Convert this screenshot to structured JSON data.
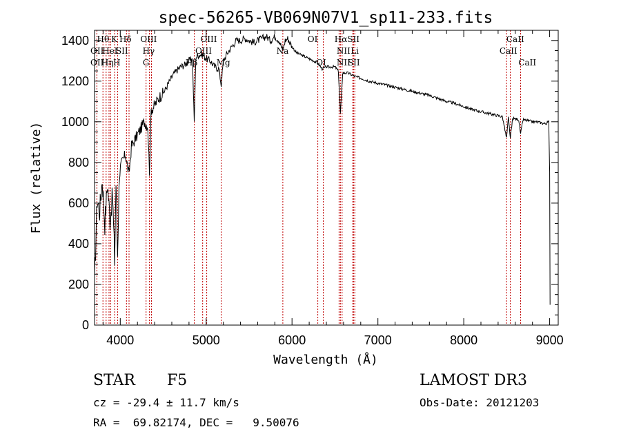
{
  "chart_data": {
    "type": "line",
    "title": "spec-56265-VB069N07V1_sp11-233.fits",
    "xlabel": "Wavelength (Å)",
    "ylabel": "Flux (relative)",
    "xlim": [
      3700,
      9100
    ],
    "ylim": [
      0,
      1450
    ],
    "xticks": [
      4000,
      5000,
      6000,
      7000,
      8000,
      9000
    ],
    "yticks": [
      0,
      200,
      400,
      600,
      800,
      1000,
      1200,
      1400
    ],
    "grid": false,
    "series": [
      {
        "name": "spectrum",
        "color": "#000000",
        "x": [
          3700,
          3730,
          3760,
          3790,
          3820,
          3850,
          3880,
          3910,
          3934,
          3950,
          3968,
          3990,
          4020,
          4060,
          4101,
          4130,
          4180,
          4230,
          4280,
          4320,
          4340,
          4360,
          4400,
          4450,
          4500,
          4550,
          4600,
          4650,
          4700,
          4750,
          4800,
          4840,
          4861,
          4880,
          4920,
          4960,
          5000,
          5050,
          5100,
          5150,
          5175,
          5200,
          5250,
          5300,
          5350,
          5400,
          5450,
          5500,
          5550,
          5600,
          5650,
          5700,
          5750,
          5800,
          5850,
          5893,
          5920,
          5950,
          6000,
          6050,
          6100,
          6150,
          6200,
          6250,
          6300,
          6350,
          6400,
          6450,
          6500,
          6540,
          6563,
          6590,
          6620,
          6650,
          6700,
          6750,
          6800,
          6900,
          7000,
          7100,
          7200,
          7300,
          7400,
          7500,
          7600,
          7700,
          7800,
          7900,
          8000,
          8100,
          8200,
          8300,
          8400,
          8450,
          8498,
          8520,
          8542,
          8570,
          8600,
          8640,
          8662,
          8690,
          8750,
          8800,
          8850,
          8900,
          8950,
          8990,
          9000,
          9005
        ],
        "y": [
          200,
          620,
          560,
          720,
          500,
          700,
          520,
          640,
          320,
          700,
          350,
          760,
          800,
          840,
          740,
          880,
          920,
          960,
          1000,
          980,
          760,
          1060,
          1080,
          1120,
          1140,
          1180,
          1220,
          1250,
          1270,
          1280,
          1300,
          1310,
          1000,
          1320,
          1330,
          1330,
          1310,
          1300,
          1270,
          1260,
          1180,
          1300,
          1340,
          1370,
          1400,
          1400,
          1410,
          1400,
          1390,
          1400,
          1410,
          1420,
          1400,
          1420,
          1400,
          1350,
          1400,
          1410,
          1370,
          1340,
          1330,
          1320,
          1310,
          1300,
          1290,
          1260,
          1270,
          1270,
          1270,
          1250,
          1040,
          1240,
          1240,
          1240,
          1230,
          1220,
          1215,
          1200,
          1190,
          1180,
          1170,
          1160,
          1150,
          1140,
          1130,
          1115,
          1100,
          1090,
          1075,
          1060,
          1050,
          1040,
          1030,
          1025,
          920,
          1020,
          920,
          1015,
          1015,
          1010,
          940,
          1010,
          1005,
          1000,
          1000,
          995,
          990,
          1000,
          760,
          100
        ]
      }
    ],
    "lines": [
      {
        "x": 3727,
        "labels": [
          "OII"
        ]
      },
      {
        "x": 3798,
        "labels": [
          "Hθ"
        ]
      },
      {
        "x": 3835,
        "labels": [
          "Hη"
        ]
      },
      {
        "x": 3869,
        "labels": [
          "NeIII"
        ]
      },
      {
        "x": 3889,
        "labels": [
          "HeI"
        ]
      },
      {
        "x": 3934,
        "labels": [
          "K"
        ]
      },
      {
        "x": 3968,
        "labels": [
          "H"
        ]
      },
      {
        "x": 4072,
        "labels": [
          "SII"
        ]
      },
      {
        "x": 4102,
        "labels": [
          "Hδ"
        ]
      },
      {
        "x": 4300,
        "labels": [
          "G"
        ]
      },
      {
        "x": 4340,
        "labels": [
          "Hγ"
        ]
      },
      {
        "x": 4363,
        "labels": [
          "OIII"
        ]
      },
      {
        "x": 4861,
        "labels": [
          "Hβ"
        ]
      },
      {
        "x": 4959,
        "labels": [
          "OIII"
        ]
      },
      {
        "x": 5007,
        "labels": [
          "OIII"
        ]
      },
      {
        "x": 5175,
        "labels": [
          "Mg"
        ]
      },
      {
        "x": 5893,
        "labels": [
          "Na"
        ]
      },
      {
        "x": 6300,
        "labels": [
          "OI"
        ]
      },
      {
        "x": 6364,
        "labels": [
          "OI"
        ]
      },
      {
        "x": 6548,
        "labels": [
          "NII"
        ]
      },
      {
        "x": 6563,
        "labels": [
          "Hα"
        ]
      },
      {
        "x": 6583,
        "labels": [
          "NII"
        ]
      },
      {
        "x": 6708,
        "labels": [
          "Li"
        ]
      },
      {
        "x": 6716,
        "labels": [
          "SII"
        ]
      },
      {
        "x": 6731,
        "labels": [
          "SII"
        ]
      },
      {
        "x": 8498,
        "labels": [
          "CaII"
        ]
      },
      {
        "x": 8542,
        "labels": [
          "CaII"
        ]
      },
      {
        "x": 8662,
        "labels": [
          "CaII"
        ]
      }
    ],
    "line_labels": [
      {
        "text": "Hθ",
        "x": 3800,
        "row": 0
      },
      {
        "text": "K",
        "x": 3930,
        "row": 0
      },
      {
        "text": "Hδ",
        "x": 4060,
        "row": 0
      },
      {
        "text": "OIII",
        "x": 4330,
        "row": 0
      },
      {
        "text": "OIII",
        "x": 5030,
        "row": 0
      },
      {
        "text": "OI",
        "x": 6240,
        "row": 0
      },
      {
        "text": "HαSII",
        "x": 6640,
        "row": 0
      },
      {
        "text": "CaII",
        "x": 8600,
        "row": 0
      },
      {
        "text": "OII",
        "x": 3730,
        "row": 1
      },
      {
        "text": "HeI",
        "x": 3880,
        "row": 1
      },
      {
        "text": "SII",
        "x": 4020,
        "row": 1
      },
      {
        "text": "Hγ",
        "x": 4330,
        "row": 1
      },
      {
        "text": "OIII",
        "x": 4970,
        "row": 1
      },
      {
        "text": "Na",
        "x": 5890,
        "row": 1
      },
      {
        "text": "NII",
        "x": 6600,
        "row": 1
      },
      {
        "text": "Li",
        "x": 6730,
        "row": 1
      },
      {
        "text": "CaII",
        "x": 8520,
        "row": 1
      },
      {
        "text": "OII",
        "x": 3730,
        "row": 2
      },
      {
        "text": "Hη",
        "x": 3850,
        "row": 2
      },
      {
        "text": "H",
        "x": 3960,
        "row": 2
      },
      {
        "text": "G",
        "x": 4300,
        "row": 2
      },
      {
        "text": "Hβ",
        "x": 4830,
        "row": 2
      },
      {
        "text": "Mg",
        "x": 5200,
        "row": 2
      },
      {
        "text": "OI",
        "x": 6340,
        "row": 2
      },
      {
        "text": "NII",
        "x": 6600,
        "row": 2
      },
      {
        "text": "SII",
        "x": 6720,
        "row": 2
      },
      {
        "text": "CaII",
        "x": 8740,
        "row": 2
      }
    ],
    "line_color": "#c00000"
  },
  "info": {
    "object_class": "STAR",
    "subclass": "F5",
    "survey": "LAMOST DR3",
    "redshift": "cz = -29.4 ± 11.7 km/s",
    "obs_date": "Obs-Date: 20121203",
    "coords": "RA =  69.82174, DEC =   9.50076"
  }
}
